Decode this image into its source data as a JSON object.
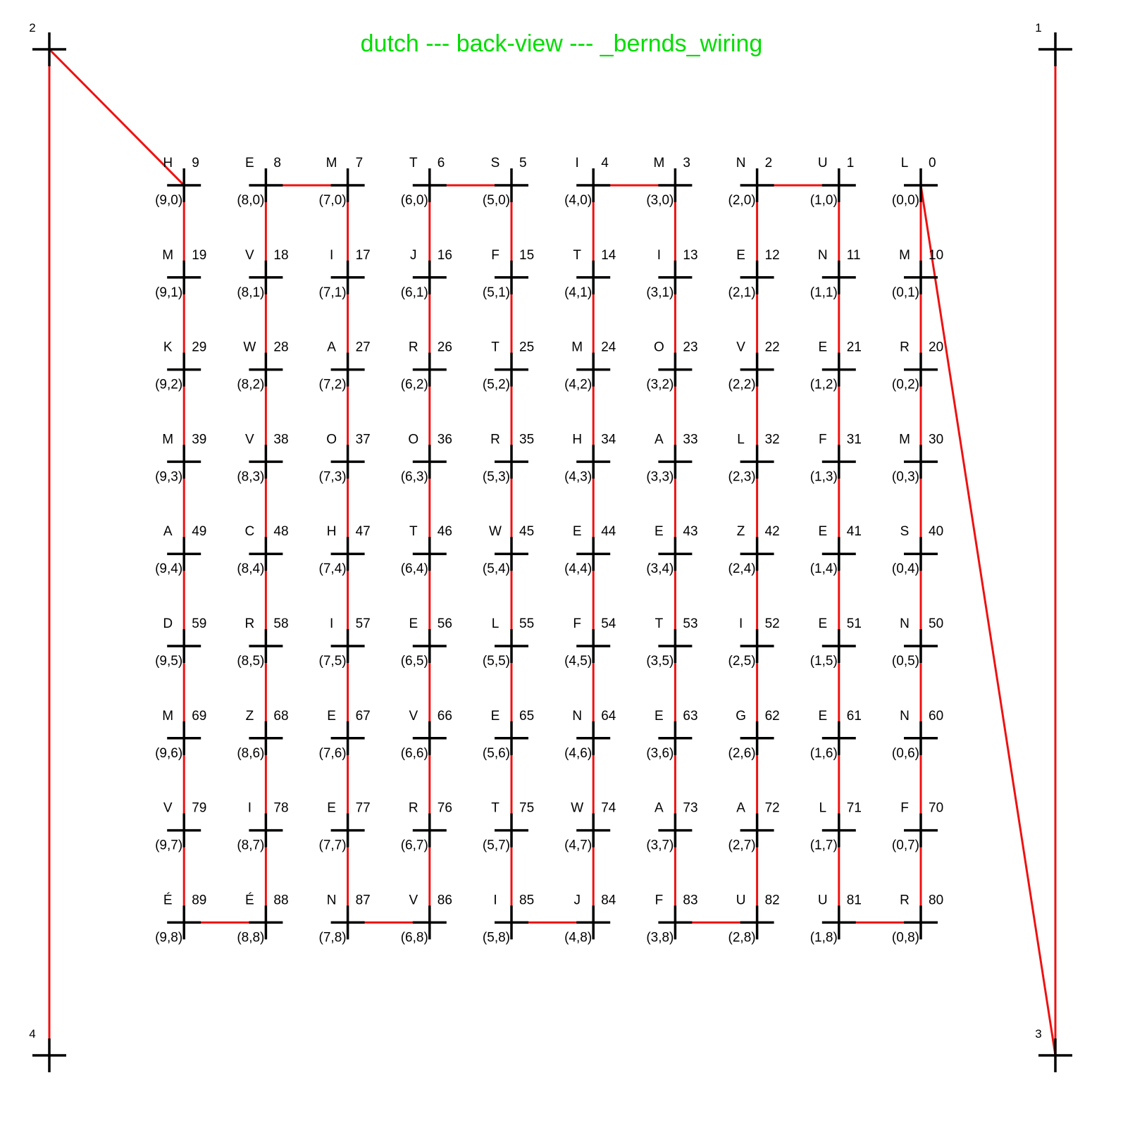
{
  "title": "dutch --- back-view --- _bernds_wiring",
  "colors": {
    "title": "#00dd00",
    "wire": "#ee1111",
    "marker": "#000000"
  },
  "corners": [
    {
      "id": "1",
      "pos": "top-right"
    },
    {
      "id": "2",
      "pos": "top-left"
    },
    {
      "id": "3",
      "pos": "bottom-right"
    },
    {
      "id": "4",
      "pos": "bottom-left"
    }
  ],
  "grid": {
    "cols": 10,
    "rows": 9,
    "letters": [
      "HEMTSIMNUL",
      "MVIJFTIENM",
      "KWARTMOVER",
      "MVOORHALFM",
      "ACHTWEEZES",
      "DRIELFTIEN",
      "MZEVENEGEN",
      "VIERTWAALF",
      "ÉÉNVIJFUUR"
    ]
  }
}
